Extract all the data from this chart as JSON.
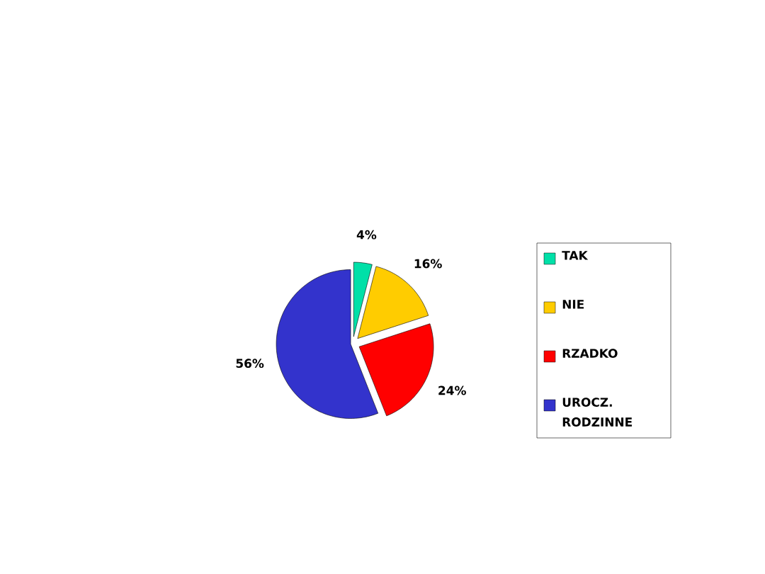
{
  "chart_data": {
    "type": "pie",
    "categories": [
      "TAK",
      "NIE",
      "RZADKO",
      "UROCZ. RODZINNE"
    ],
    "values": [
      4,
      16,
      24,
      56
    ],
    "colors": [
      "#00e0a8",
      "#ffcc00",
      "#ff0000",
      "#3333cc"
    ],
    "value_labels": [
      "4%",
      "16%",
      "24%",
      "56%"
    ],
    "legend": "right"
  }
}
